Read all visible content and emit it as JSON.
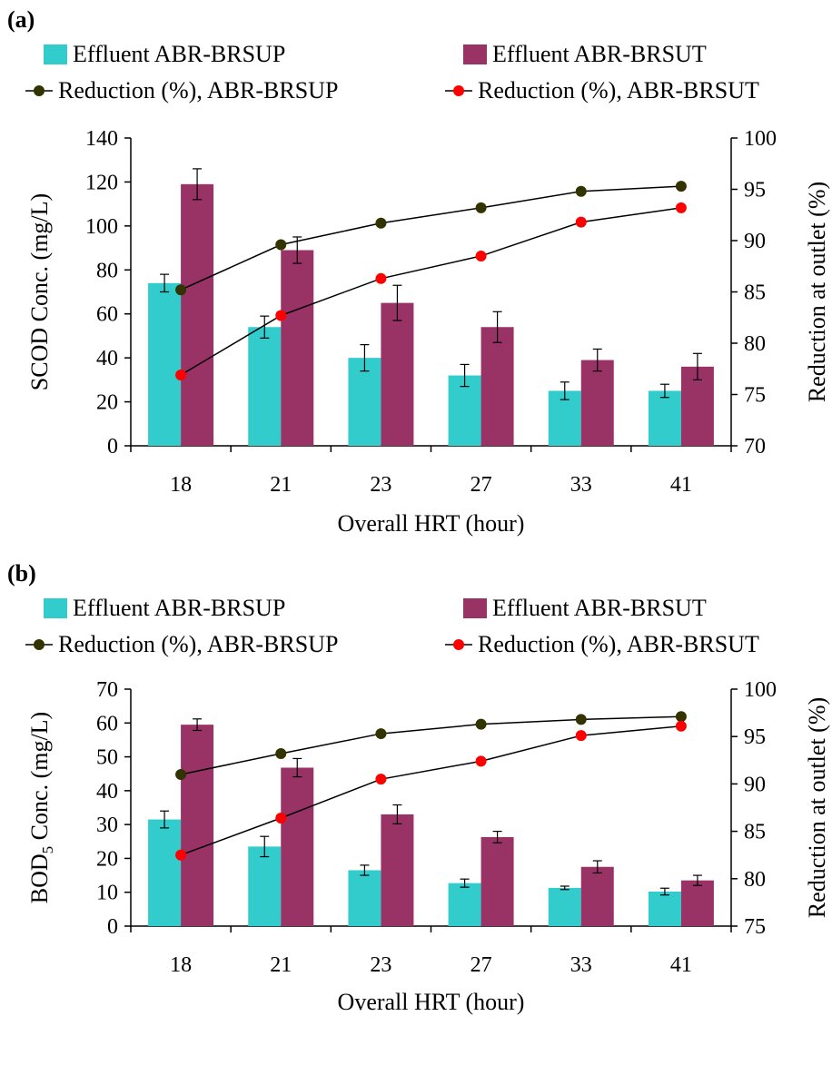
{
  "chart_data": [
    {
      "type": "bar",
      "panel_label": "(a)",
      "categories": [
        "18",
        "21",
        "23",
        "27",
        "33",
        "41"
      ],
      "xlabel": "Overall HRT (hour)",
      "ylabel": "SCOD Conc. (mg/L)",
      "ylabel_sub": "",
      "ylabel_rest": "",
      "y2label": "Reduction at outlet (%)",
      "ylim": [
        0,
        140
      ],
      "yticks": [
        0,
        20,
        40,
        60,
        80,
        100,
        120,
        140
      ],
      "y2lim": [
        70,
        100
      ],
      "y2ticks": [
        70,
        75,
        80,
        85,
        90,
        95,
        100
      ],
      "bar_series": [
        {
          "name": "Effluent ABR-BRSUP",
          "color": "#33cccc",
          "values": [
            74,
            54,
            40,
            32,
            25,
            25
          ],
          "errors": [
            4,
            5,
            6,
            5,
            4,
            3
          ]
        },
        {
          "name": "Effluent ABR-BRSUT",
          "color": "#993366",
          "values": [
            119,
            89,
            65,
            54,
            39,
            36
          ],
          "errors": [
            7,
            6,
            8,
            7,
            5,
            6
          ]
        }
      ],
      "line_series": [
        {
          "name": "Reduction (%), ABR-BRSUP",
          "color": "#333300",
          "values": [
            85.2,
            89.6,
            91.7,
            93.2,
            94.8,
            95.3
          ]
        },
        {
          "name": "Reduction (%), ABR-BRSUT",
          "color": "#ff0000",
          "values": [
            76.9,
            82.7,
            86.3,
            88.5,
            91.8,
            93.2
          ]
        }
      ],
      "legend": "top"
    },
    {
      "type": "bar",
      "panel_label": "(b)",
      "categories": [
        "18",
        "21",
        "23",
        "27",
        "33",
        "41"
      ],
      "xlabel": "Overall HRT (hour)",
      "ylabel": "BOD",
      "ylabel_sub": "5",
      "ylabel_rest": " Conc. (mg/L)",
      "y2label": "Reduction at outlet (%)",
      "ylim": [
        0,
        70
      ],
      "yticks": [
        0,
        10,
        20,
        30,
        40,
        50,
        60,
        70
      ],
      "y2lim": [
        75,
        100
      ],
      "y2ticks": [
        75,
        80,
        85,
        90,
        95,
        100
      ],
      "bar_series": [
        {
          "name": "Effluent ABR-BRSUP",
          "color": "#33cccc",
          "values": [
            31.5,
            23.5,
            16.5,
            12.7,
            11.3,
            10.2
          ],
          "errors": [
            2.5,
            3,
            1.5,
            1.2,
            0.5,
            1
          ]
        },
        {
          "name": "Effluent ABR-BRSUT",
          "color": "#993366",
          "values": [
            59.5,
            46.8,
            33,
            26.3,
            17.5,
            13.5
          ],
          "errors": [
            1.7,
            2.7,
            2.8,
            1.7,
            1.8,
            1.5
          ]
        }
      ],
      "line_series": [
        {
          "name": "Reduction (%), ABR-BRSUP",
          "color": "#333300",
          "values": [
            91,
            93.2,
            95.3,
            96.3,
            96.8,
            97.1
          ]
        },
        {
          "name": "Reduction (%), ABR-BRSUT",
          "color": "#ff0000",
          "values": [
            82.5,
            86.4,
            90.5,
            92.4,
            95.1,
            96.1
          ]
        }
      ],
      "legend": "top"
    }
  ]
}
